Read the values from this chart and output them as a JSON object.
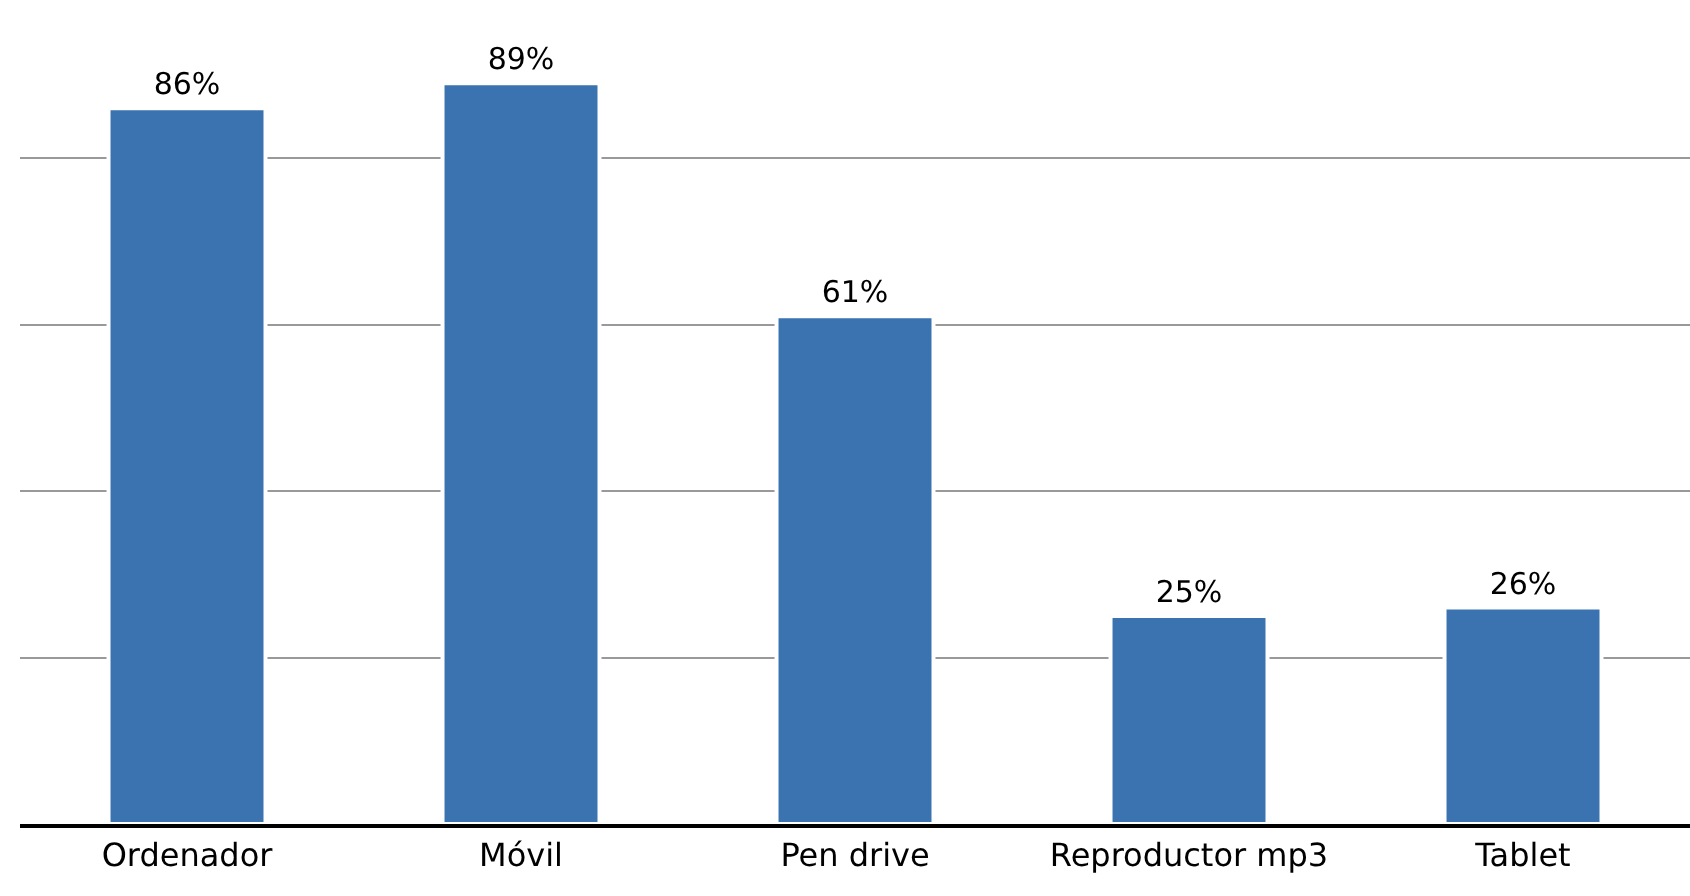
{
  "chart_data": {
    "type": "bar",
    "categories": [
      "Ordenador",
      "Móvil",
      "Pen drive",
      "Reproductor mp3",
      "Tablet"
    ],
    "values": [
      86,
      89,
      61,
      25,
      26
    ],
    "value_labels": [
      "86%",
      "89%",
      "61%",
      "25%",
      "26%"
    ],
    "color": "#3a73b0",
    "ylim": [
      0,
      99
    ],
    "yticks": [
      {
        "value": 0,
        "label": null
      },
      {
        "value": 20,
        "label": null
      },
      {
        "value": 40,
        "label": null
      },
      {
        "value": 60,
        "label": null
      },
      {
        "value": 80,
        "label": null
      }
    ],
    "grid": "y",
    "legend": false,
    "tick_labels": "x"
  }
}
